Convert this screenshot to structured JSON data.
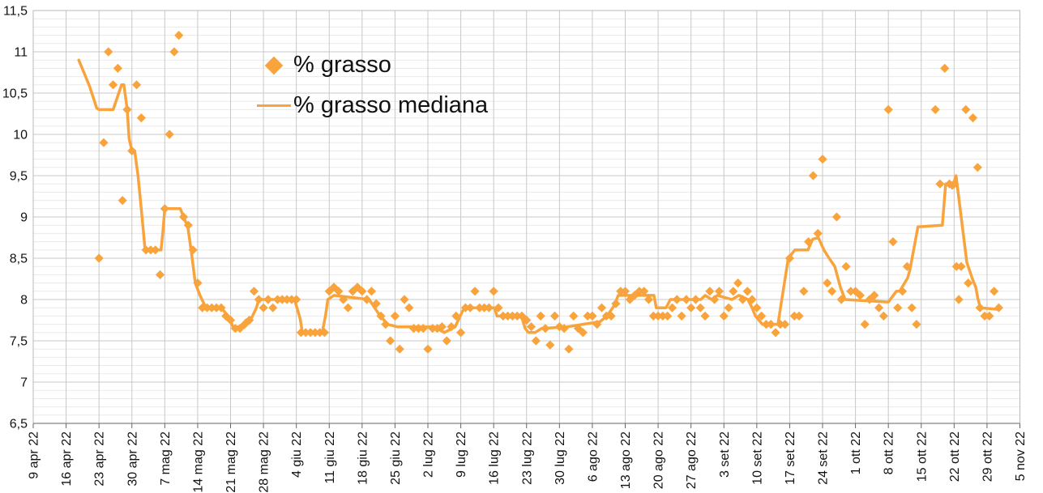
{
  "accent_color": "#F9A33C",
  "text_color": "#111111",
  "grid": {
    "minor_color": "#eaeaea",
    "major_color": "#c8c8c8",
    "border_color": "#b9b9b9",
    "tick_color": "#666666"
  },
  "legend": {
    "item1": "% grasso",
    "item2": "% grasso mediana"
  },
  "chart_data": {
    "type": "scatter",
    "title": "",
    "xlabel": "",
    "ylabel": "",
    "grid": true,
    "legend_position": "inside-top-left",
    "y_axis": {
      "min": 6.5,
      "max": 11.5,
      "major_step": 0.5,
      "minor_step": 0.1,
      "tick_labels": [
        "11,5",
        "11",
        "10,5",
        "10",
        "9,5",
        "9",
        "8,5",
        "8",
        "7,5",
        "7",
        "6,5"
      ]
    },
    "x_axis": {
      "unit": "days since first tick",
      "days_per_tick": 7,
      "range_days": [
        0,
        210
      ],
      "tick_labels": [
        "9 apr 22",
        "16 apr 22",
        "23 apr 22",
        "30 apr 22",
        "7 mag 22",
        "14 mag 22",
        "21 mag 22",
        "28 mag 22",
        "4 giu 22",
        "11 giu 22",
        "18 giu 22",
        "25 giu 22",
        "2 lug 22",
        "9 lug 22",
        "16 lug 22",
        "23 lug 22",
        "30 lug 22",
        "6 ago 22",
        "13 ago 22",
        "20 ago 22",
        "27 ago 22",
        "3 set 22",
        "10 set 22",
        "17 set 22",
        "24 set 22",
        "1 ott 22",
        "8 ott 22",
        "15 ott 22",
        "22 ott 22",
        "29 ott 22",
        "5 nov 22"
      ]
    },
    "series": [
      {
        "name": "% grasso",
        "type": "scatter",
        "marker": "diamond",
        "color": "#F9A33C",
        "points": [
          [
            14,
            8.5
          ],
          [
            15,
            9.9
          ],
          [
            16,
            11.0
          ],
          [
            17,
            10.6
          ],
          [
            18,
            10.8
          ],
          [
            19,
            9.2
          ],
          [
            20,
            10.3
          ],
          [
            21,
            9.8
          ],
          [
            22,
            10.6
          ],
          [
            23,
            10.2
          ],
          [
            24,
            8.6
          ],
          [
            25,
            8.6
          ],
          [
            26,
            8.6
          ],
          [
            27,
            8.3
          ],
          [
            28,
            9.1
          ],
          [
            29,
            10.0
          ],
          [
            30,
            11.0
          ],
          [
            31,
            11.2
          ],
          [
            32,
            9.0
          ],
          [
            33,
            8.9
          ],
          [
            34,
            8.6
          ],
          [
            35,
            8.2
          ],
          [
            36,
            7.9
          ],
          [
            37,
            7.9
          ],
          [
            38,
            7.9
          ],
          [
            39,
            7.9
          ],
          [
            40,
            7.9
          ],
          [
            41,
            7.8
          ],
          [
            42,
            7.75
          ],
          [
            43,
            7.65
          ],
          [
            44,
            7.65
          ],
          [
            45,
            7.7
          ],
          [
            46,
            7.75
          ],
          [
            47,
            8.1
          ],
          [
            48,
            8.0
          ],
          [
            49,
            7.9
          ],
          [
            50,
            8.0
          ],
          [
            51,
            7.9
          ],
          [
            52,
            8.0
          ],
          [
            53,
            8.0
          ],
          [
            54,
            8.0
          ],
          [
            55,
            8.0
          ],
          [
            56,
            8.0
          ],
          [
            57,
            7.6
          ],
          [
            58,
            7.6
          ],
          [
            59,
            7.6
          ],
          [
            60,
            7.6
          ],
          [
            61,
            7.6
          ],
          [
            62,
            7.6
          ],
          [
            63,
            8.1
          ],
          [
            64,
            8.15
          ],
          [
            65,
            8.1
          ],
          [
            66,
            8.0
          ],
          [
            67,
            7.9
          ],
          [
            68,
            8.1
          ],
          [
            69,
            8.15
          ],
          [
            70,
            8.1
          ],
          [
            71,
            8.0
          ],
          [
            72,
            8.1
          ],
          [
            73,
            7.95
          ],
          [
            74,
            7.8
          ],
          [
            75,
            7.7
          ],
          [
            76,
            7.5
          ],
          [
            77,
            7.8
          ],
          [
            78,
            7.4
          ],
          [
            79,
            8.0
          ],
          [
            80,
            7.9
          ],
          [
            81,
            7.65
          ],
          [
            82,
            7.65
          ],
          [
            83,
            7.65
          ],
          [
            84,
            7.4
          ],
          [
            85,
            7.65
          ],
          [
            86,
            7.65
          ],
          [
            87,
            7.67
          ],
          [
            88,
            7.5
          ],
          [
            89,
            7.67
          ],
          [
            90,
            7.8
          ],
          [
            91,
            7.6
          ],
          [
            92,
            7.9
          ],
          [
            93,
            7.9
          ],
          [
            94,
            8.1
          ],
          [
            95,
            7.9
          ],
          [
            96,
            7.9
          ],
          [
            97,
            7.9
          ],
          [
            98,
            8.1
          ],
          [
            99,
            7.9
          ],
          [
            100,
            7.8
          ],
          [
            101,
            7.8
          ],
          [
            102,
            7.8
          ],
          [
            103,
            7.8
          ],
          [
            104,
            7.8
          ],
          [
            105,
            7.75
          ],
          [
            106,
            7.67
          ],
          [
            107,
            7.5
          ],
          [
            108,
            7.8
          ],
          [
            109,
            7.65
          ],
          [
            110,
            7.45
          ],
          [
            111,
            7.8
          ],
          [
            112,
            7.67
          ],
          [
            113,
            7.65
          ],
          [
            114,
            7.4
          ],
          [
            115,
            7.8
          ],
          [
            116,
            7.65
          ],
          [
            117,
            7.6
          ],
          [
            118,
            7.8
          ],
          [
            119,
            7.8
          ],
          [
            120,
            7.7
          ],
          [
            121,
            7.9
          ],
          [
            122,
            7.8
          ],
          [
            123,
            7.8
          ],
          [
            124,
            7.95
          ],
          [
            125,
            8.1
          ],
          [
            126,
            8.1
          ],
          [
            127,
            8.0
          ],
          [
            128,
            8.05
          ],
          [
            129,
            8.1
          ],
          [
            130,
            8.1
          ],
          [
            131,
            8.0
          ],
          [
            132,
            7.8
          ],
          [
            133,
            7.8
          ],
          [
            134,
            7.8
          ],
          [
            135,
            7.8
          ],
          [
            136,
            7.9
          ],
          [
            137,
            8.0
          ],
          [
            138,
            7.8
          ],
          [
            139,
            8.0
          ],
          [
            140,
            7.9
          ],
          [
            141,
            8.0
          ],
          [
            142,
            7.9
          ],
          [
            143,
            7.8
          ],
          [
            144,
            8.1
          ],
          [
            145,
            8.0
          ],
          [
            146,
            8.1
          ],
          [
            147,
            7.8
          ],
          [
            148,
            7.9
          ],
          [
            149,
            8.1
          ],
          [
            150,
            8.2
          ],
          [
            151,
            8.0
          ],
          [
            152,
            8.1
          ],
          [
            153,
            8.0
          ],
          [
            154,
            7.9
          ],
          [
            155,
            7.8
          ],
          [
            156,
            7.7
          ],
          [
            157,
            7.7
          ],
          [
            158,
            7.6
          ],
          [
            159,
            7.7
          ],
          [
            160,
            7.7
          ],
          [
            161,
            8.5
          ],
          [
            162,
            7.8
          ],
          [
            163,
            7.8
          ],
          [
            164,
            8.1
          ],
          [
            165,
            8.7
          ],
          [
            166,
            9.5
          ],
          [
            167,
            8.8
          ],
          [
            168,
            9.7
          ],
          [
            169,
            8.2
          ],
          [
            170,
            8.1
          ],
          [
            171,
            9.0
          ],
          [
            172,
            8.0
          ],
          [
            173,
            8.4
          ],
          [
            174,
            8.1
          ],
          [
            175,
            8.1
          ],
          [
            176,
            8.05
          ],
          [
            177,
            7.7
          ],
          [
            178,
            8.0
          ],
          [
            179,
            8.05
          ],
          [
            180,
            7.9
          ],
          [
            181,
            7.8
          ],
          [
            182,
            10.3
          ],
          [
            183,
            8.7
          ],
          [
            184,
            7.9
          ],
          [
            185,
            8.1
          ],
          [
            186,
            8.4
          ],
          [
            187,
            7.9
          ],
          [
            188,
            7.7
          ],
          [
            192,
            10.3
          ],
          [
            193,
            9.4
          ],
          [
            194,
            10.8
          ],
          [
            195,
            9.4
          ],
          [
            196,
            9.4
          ],
          [
            196.5,
            8.4
          ],
          [
            197,
            8.0
          ],
          [
            197.5,
            8.4
          ],
          [
            198.5,
            10.3
          ],
          [
            199,
            8.2
          ],
          [
            200,
            10.2
          ],
          [
            201,
            9.6
          ],
          [
            201.5,
            7.9
          ],
          [
            202.5,
            7.8
          ],
          [
            203.5,
            7.8
          ],
          [
            204.5,
            8.1
          ],
          [
            205.5,
            7.9
          ]
        ]
      },
      {
        "name": "% grasso mediana",
        "type": "line",
        "color": "#F9A33C",
        "points": [
          [
            9.7,
            10.9
          ],
          [
            11,
            10.72
          ],
          [
            12,
            10.58
          ],
          [
            13.5,
            10.32
          ],
          [
            14,
            10.3
          ],
          [
            17,
            10.3
          ],
          [
            18.8,
            10.6
          ],
          [
            19.3,
            10.6
          ],
          [
            20,
            10.3
          ],
          [
            20.4,
            9.95
          ],
          [
            21,
            9.8
          ],
          [
            21.6,
            9.8
          ],
          [
            22.3,
            9.5
          ],
          [
            23,
            9.1
          ],
          [
            23.4,
            8.85
          ],
          [
            23.8,
            8.6
          ],
          [
            27.2,
            8.6
          ],
          [
            27.6,
            8.82
          ],
          [
            28,
            9.1
          ],
          [
            31.3,
            9.1
          ],
          [
            32,
            9.0
          ],
          [
            32.9,
            8.88
          ],
          [
            33.6,
            8.6
          ],
          [
            34.5,
            8.2
          ],
          [
            35.5,
            8.05
          ],
          [
            36.5,
            7.93
          ],
          [
            37,
            7.9
          ],
          [
            40,
            7.9
          ],
          [
            41.8,
            7.78
          ],
          [
            42.5,
            7.67
          ],
          [
            44.5,
            7.67
          ],
          [
            45.3,
            7.75
          ],
          [
            46.5,
            7.78
          ],
          [
            47.5,
            7.9
          ],
          [
            48,
            8.0
          ],
          [
            55.6,
            8.0
          ],
          [
            56.3,
            7.87
          ],
          [
            56.8,
            7.77
          ],
          [
            57.3,
            7.6
          ],
          [
            61.5,
            7.6
          ],
          [
            62.2,
            7.8
          ],
          [
            62.7,
            8.0
          ],
          [
            64,
            8.05
          ],
          [
            71.5,
            8.0
          ],
          [
            73.5,
            7.83
          ],
          [
            75.4,
            7.7
          ],
          [
            77.5,
            7.67
          ],
          [
            85.4,
            7.67
          ],
          [
            87.5,
            7.6
          ],
          [
            89.8,
            7.67
          ],
          [
            91.3,
            7.85
          ],
          [
            91.8,
            7.9
          ],
          [
            98.2,
            7.9
          ],
          [
            98.7,
            7.8
          ],
          [
            103.9,
            7.8
          ],
          [
            104.7,
            7.65
          ],
          [
            105.4,
            7.6
          ],
          [
            106.8,
            7.6
          ],
          [
            108.2,
            7.65
          ],
          [
            113.7,
            7.67
          ],
          [
            117,
            7.7
          ],
          [
            120.6,
            7.73
          ],
          [
            122.1,
            7.8
          ],
          [
            123.7,
            7.93
          ],
          [
            124.5,
            8.05
          ],
          [
            132.1,
            8.05
          ],
          [
            132.6,
            7.9
          ],
          [
            134.7,
            7.9
          ],
          [
            135.6,
            8.0
          ],
          [
            142.1,
            8.0
          ],
          [
            143,
            8.05
          ],
          [
            144.4,
            8.0
          ],
          [
            145.6,
            8.05
          ],
          [
            148.7,
            8.0
          ],
          [
            150.2,
            8.05
          ],
          [
            152.1,
            8.0
          ],
          [
            153,
            7.9
          ],
          [
            153.7,
            7.8
          ],
          [
            155.2,
            7.7
          ],
          [
            158.5,
            7.7
          ],
          [
            160.7,
            8.5
          ],
          [
            162.1,
            8.6
          ],
          [
            164.9,
            8.6
          ],
          [
            165.9,
            8.73
          ],
          [
            167.1,
            8.75
          ],
          [
            168.3,
            8.6
          ],
          [
            169.4,
            8.5
          ],
          [
            170.6,
            8.4
          ],
          [
            171.8,
            8.15
          ],
          [
            172.8,
            8.0
          ],
          [
            182,
            7.97
          ],
          [
            183.7,
            8.1
          ],
          [
            184.4,
            8.1
          ],
          [
            186.1,
            8.26
          ],
          [
            186.6,
            8.36
          ],
          [
            188.3,
            8.88
          ],
          [
            193.5,
            8.9
          ],
          [
            194.2,
            9.4
          ],
          [
            195,
            9.4
          ],
          [
            195.6,
            9.35
          ],
          [
            196.4,
            9.5
          ],
          [
            198.7,
            8.45
          ],
          [
            199.9,
            8.25
          ],
          [
            200.6,
            8.15
          ],
          [
            201.1,
            8.0
          ],
          [
            201.6,
            7.9
          ],
          [
            205.6,
            7.88
          ]
        ]
      }
    ]
  }
}
